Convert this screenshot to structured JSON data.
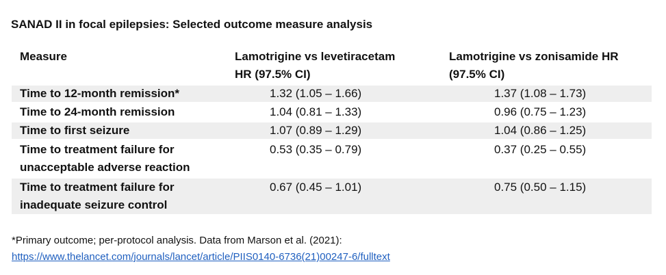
{
  "title": "SANAD II in focal epilepsies: Selected outcome measure analysis",
  "table": {
    "headers": {
      "measure": "Measure",
      "col2_line1": "Lamotrigine vs levetiracetam",
      "col2_line2": "HR (97.5% CI)",
      "col3_line1": "Lamotrigine vs zonisamide HR",
      "col3_line2": "(97.5% CI)"
    },
    "rows": [
      {
        "measure_line1": "Time to 12-month remission*",
        "measure_line2": "",
        "lev": "1.32 (1.05 – 1.66)",
        "zon": "1.37 (1.08 – 1.73)"
      },
      {
        "measure_line1": "Time to 24-month remission",
        "measure_line2": "",
        "lev": "1.04 (0.81 – 1.33)",
        "zon": "0.96 (0.75 – 1.23)"
      },
      {
        "measure_line1": "Time to first seizure",
        "measure_line2": "",
        "lev": "1.07 (0.89 – 1.29)",
        "zon": "1.04 (0.86 – 1.25)"
      },
      {
        "measure_line1": "Time to treatment failure for",
        "measure_line2": "unacceptable adverse reaction",
        "lev": "0.53 (0.35 – 0.79)",
        "zon": "0.37 (0.25 – 0.55)"
      },
      {
        "measure_line1": "Time to treatment failure for",
        "measure_line2": "inadequate seizure control",
        "lev": "0.67 (0.45 – 1.01)",
        "zon": "0.75 (0.50 – 1.15)"
      }
    ]
  },
  "footnote": {
    "text": "*Primary outcome; per-protocol analysis.  Data from Marson et al. (2021):",
    "link": "https://www.thelancet.com/journals/lancet/article/PIIS0140-6736(21)00247-6/fulltext"
  },
  "colors": {
    "row_shade": "#eeeeee",
    "link": "#1f5fbf"
  }
}
